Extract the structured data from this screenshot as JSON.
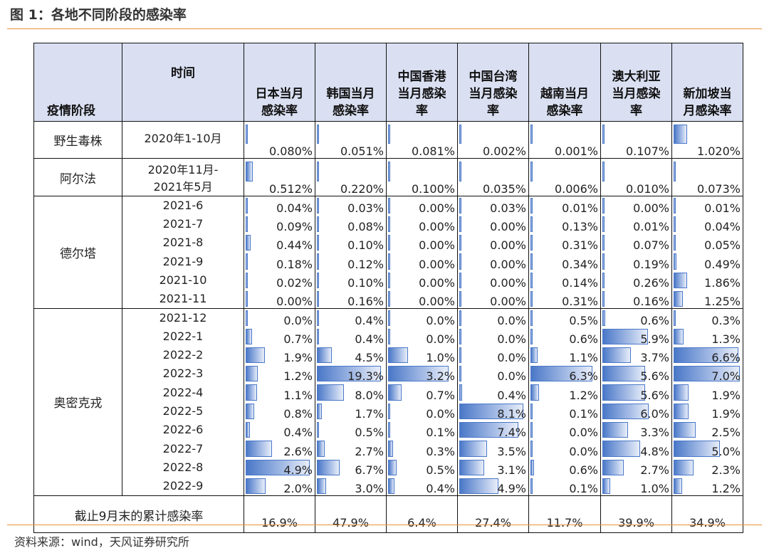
{
  "title": "图 1：各地不同阶段的感染率",
  "source": "资料来源：wind，天风证券研究所",
  "bar_color": "#4A78C8",
  "header": {
    "phase": "疫情阶段",
    "time": "时间",
    "countries": [
      [
        "日本当月",
        "感染率"
      ],
      [
        "韩国当月",
        "感染率"
      ],
      [
        "中国香港",
        "当月感染",
        "率"
      ],
      [
        "中国台湾",
        "当月感染",
        "率"
      ],
      [
        "越南当月",
        "感染率"
      ],
      [
        "澳大利亚",
        "当月感染",
        "率"
      ],
      [
        "新加坡当",
        "月感染率"
      ]
    ]
  },
  "blocks": [
    {
      "phase": "野生毒株",
      "rows": [
        {
          "time": [
            "2020年1-10月"
          ],
          "values": [
            "0.080%",
            "0.051%",
            "0.081%",
            "0.002%",
            "0.001%",
            "0.107%",
            "1.020%"
          ],
          "fill": [
            0.01,
            0.008,
            0.013,
            0,
            0,
            0.02,
            0.2
          ]
        }
      ]
    },
    {
      "phase": "阿尔法",
      "rows": [
        {
          "time": [
            "2020年11月-",
            "2021年5月"
          ],
          "values": [
            "0.512%",
            "0.220%",
            "0.100%",
            "0.035%",
            "0.006%",
            "0.010%",
            "0.073%"
          ],
          "fill": [
            0.11,
            0.02,
            0.01,
            0.01,
            0,
            0,
            0.01
          ]
        }
      ]
    },
    {
      "phase": "德尔塔",
      "rows": [
        {
          "time": [
            "2021-6"
          ],
          "values": [
            "0.04%",
            "0.03%",
            "0.00%",
            "0.03%",
            "0.01%",
            "0.00%",
            "0.01%"
          ],
          "fill": [
            0.02,
            0.01,
            0,
            0,
            0,
            0,
            0
          ]
        },
        {
          "time": [
            "2021-7"
          ],
          "values": [
            "0.09%",
            "0.08%",
            "0.00%",
            "0.00%",
            "0.13%",
            "0.01%",
            "0.04%"
          ],
          "fill": [
            0.02,
            0.02,
            0,
            0,
            0.02,
            0,
            0
          ]
        },
        {
          "time": [
            "2021-8"
          ],
          "values": [
            "0.44%",
            "0.10%",
            "0.00%",
            "0.00%",
            "0.31%",
            "0.07%",
            "0.05%"
          ],
          "fill": [
            0.07,
            0.02,
            0,
            0,
            0.03,
            0.01,
            0
          ]
        },
        {
          "time": [
            "2021-9"
          ],
          "values": [
            "0.18%",
            "0.12%",
            "0.00%",
            "0.00%",
            "0.34%",
            "0.19%",
            "0.49%"
          ],
          "fill": [
            0.03,
            0.02,
            0,
            0,
            0.03,
            0.02,
            0.04
          ]
        },
        {
          "time": [
            "2021-10"
          ],
          "values": [
            "0.02%",
            "0.10%",
            "0.00%",
            "0.00%",
            "0.14%",
            "0.26%",
            "1.86%"
          ],
          "fill": [
            0,
            0.02,
            0,
            0,
            0.02,
            0.03,
            0.2
          ]
        },
        {
          "time": [
            "2021-11"
          ],
          "values": [
            "0.00%",
            "0.16%",
            "0.00%",
            "0.00%",
            "0.31%",
            "0.16%",
            "1.25%"
          ],
          "fill": [
            0,
            0.02,
            0,
            0,
            0.03,
            0.02,
            0.14
          ]
        }
      ]
    },
    {
      "phase": "奥密克戎",
      "rows": [
        {
          "time": [
            "2021-12"
          ],
          "values": [
            "0.0%",
            "0.4%",
            "0.0%",
            "0.0%",
            "0.5%",
            "0.6%",
            "0.3%"
          ],
          "fill": [
            0,
            0.02,
            0,
            0,
            0.03,
            0.04,
            0.02
          ]
        },
        {
          "time": [
            "2022-1"
          ],
          "values": [
            "0.7%",
            "0.4%",
            "0.0%",
            "0.0%",
            "0.6%",
            "5.9%",
            "1.3%"
          ],
          "fill": [
            0.1,
            0.02,
            0,
            0,
            0.03,
            0.68,
            0.15
          ]
        },
        {
          "time": [
            "2022-2"
          ],
          "values": [
            "1.9%",
            "4.5%",
            "1.0%",
            "0.0%",
            "1.1%",
            "3.7%",
            "6.6%"
          ],
          "fill": [
            0.29,
            0.22,
            0.3,
            0,
            0.11,
            0.43,
            0.97
          ]
        },
        {
          "time": [
            "2022-3"
          ],
          "values": [
            "1.2%",
            "19.3%",
            "3.2%",
            "0.0%",
            "6.3%",
            "5.6%",
            "7.0%"
          ],
          "fill": [
            0.18,
            0.96,
            0.9,
            0,
            0.93,
            0.64,
            0.99
          ]
        },
        {
          "time": [
            "2022-4"
          ],
          "values": [
            "1.1%",
            "8.0%",
            "0.7%",
            "0.4%",
            "1.2%",
            "5.6%",
            "1.9%"
          ],
          "fill": [
            0.17,
            0.4,
            0.2,
            0.04,
            0.13,
            0.64,
            0.22
          ]
        },
        {
          "time": [
            "2022-5"
          ],
          "values": [
            "0.8%",
            "1.7%",
            "0.0%",
            "8.1%",
            "0.1%",
            "6.0%",
            "1.9%"
          ],
          "fill": [
            0.13,
            0.07,
            0,
            0.96,
            0.01,
            0.69,
            0.22
          ]
        },
        {
          "time": [
            "2022-6"
          ],
          "values": [
            "0.4%",
            "0.5%",
            "0.1%",
            "7.4%",
            "0.0%",
            "3.3%",
            "2.5%"
          ],
          "fill": [
            0.06,
            0.03,
            0.02,
            0.88,
            0,
            0.38,
            0.33
          ]
        },
        {
          "time": [
            "2022-7"
          ],
          "values": [
            "2.6%",
            "2.7%",
            "0.3%",
            "3.5%",
            "0.0%",
            "4.8%",
            "5.0%"
          ],
          "fill": [
            0.39,
            0.12,
            0.07,
            0.41,
            0,
            0.56,
            0.69
          ]
        },
        {
          "time": [
            "2022-8"
          ],
          "values": [
            "4.9%",
            "6.7%",
            "0.5%",
            "3.1%",
            "0.6%",
            "2.7%",
            "2.3%"
          ],
          "fill": [
            0.96,
            0.34,
            0.13,
            0.37,
            0.05,
            0.32,
            0.3
          ]
        },
        {
          "time": [
            "2022-9"
          ],
          "values": [
            "2.0%",
            "3.0%",
            "0.4%",
            "4.9%",
            "0.1%",
            "1.0%",
            "1.2%"
          ],
          "fill": [
            0.3,
            0.14,
            0.1,
            0.58,
            0.01,
            0.12,
            0.13
          ]
        }
      ]
    }
  ],
  "cumulative": {
    "label": "截止9月末的累计感染率",
    "values": [
      "16.9%",
      "47.9%",
      "6.4%",
      "27.4%",
      "11.7%",
      "39.9%",
      "34.9%"
    ]
  }
}
